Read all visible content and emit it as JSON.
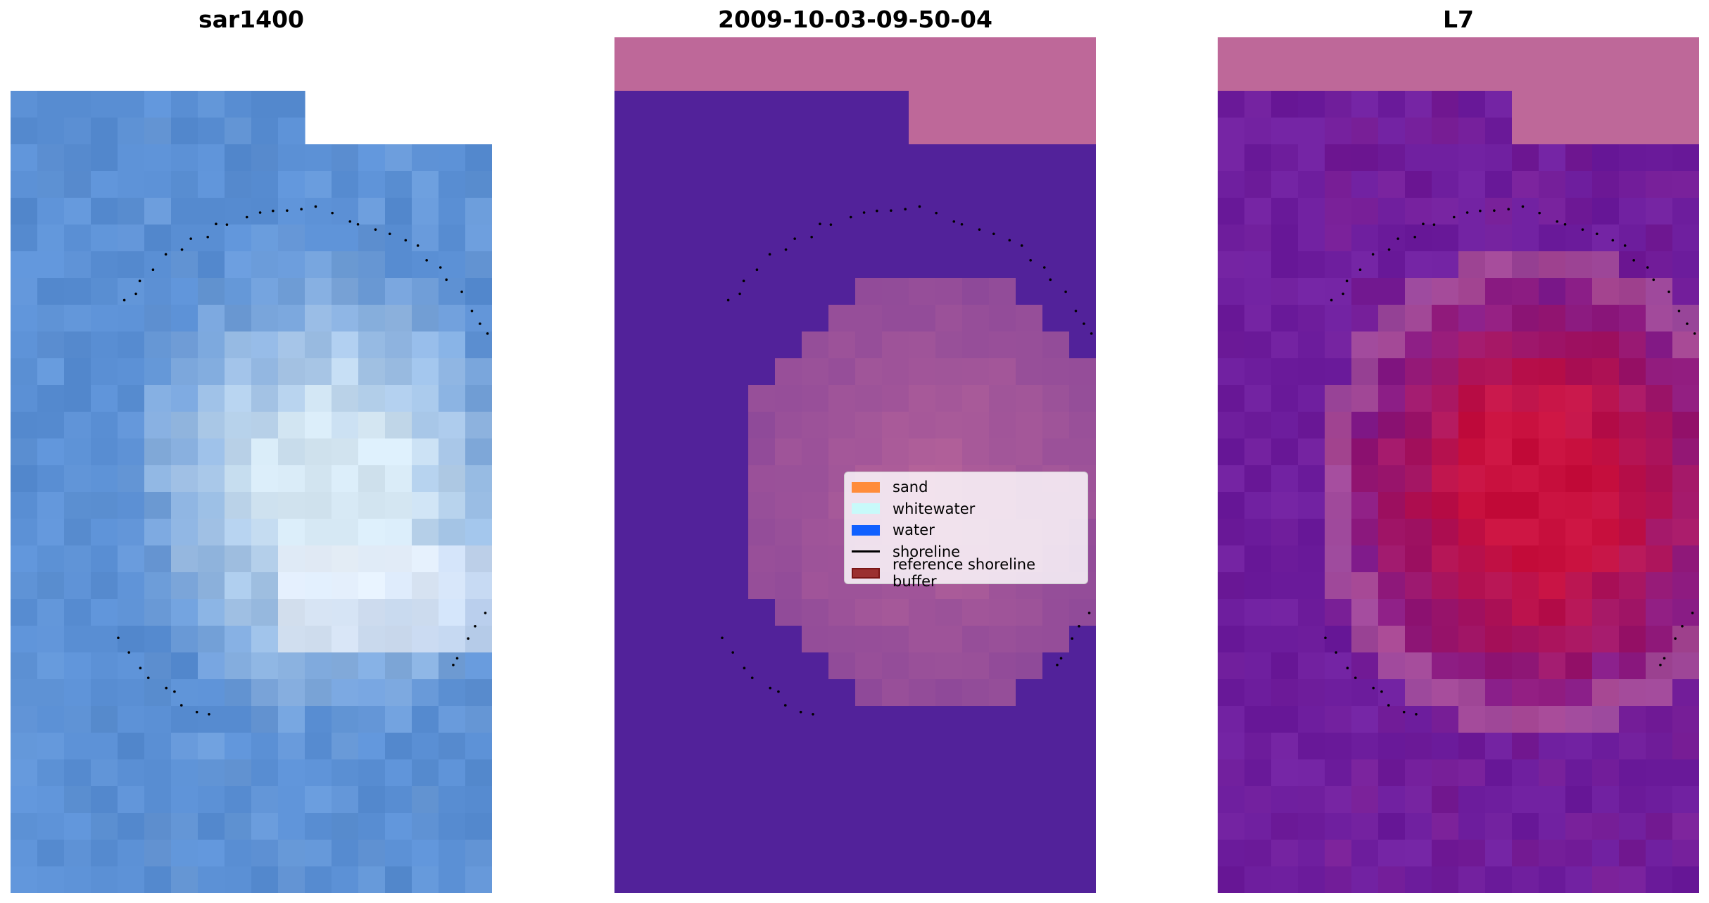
{
  "panels": [
    {
      "title": "sar1400"
    },
    {
      "title": "2009-10-03-09-50-04"
    },
    {
      "title": "L7"
    }
  ],
  "legend": {
    "items": [
      {
        "label": "sand",
        "color": "#ff8c3a",
        "kind": "patch"
      },
      {
        "label": "whitewater",
        "color": "#c8fafa",
        "kind": "patch"
      },
      {
        "label": "water",
        "color": "#1060ff",
        "kind": "patch"
      },
      {
        "label": "shoreline",
        "color": "#000000",
        "kind": "line"
      },
      {
        "label": "reference shoreline buffer",
        "color": "#9b3030",
        "kind": "buffer"
      }
    ]
  },
  "colors": {
    "classification_background": "#52229a",
    "buffer_overlay": "#be6899",
    "sar_water": "#5a8fd4",
    "sar_whitewater": "#d6e8f4",
    "l7_background": "#6e1e9e",
    "l7_bright": "#c8103e"
  }
}
